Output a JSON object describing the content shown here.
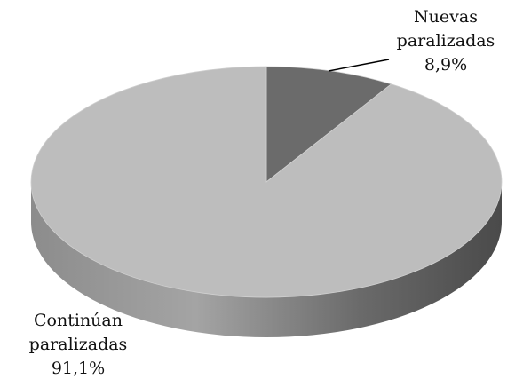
{
  "chart_data": {
    "type": "pie3d",
    "categories": [
      "Nuevas paralizadas",
      "Continúan paralizadas"
    ],
    "values": [
      8.9,
      91.1
    ],
    "value_labels": [
      "8,9%",
      "91,1%"
    ],
    "colors": [
      "#6b6b6b",
      "#bdbdbd"
    ]
  }
}
